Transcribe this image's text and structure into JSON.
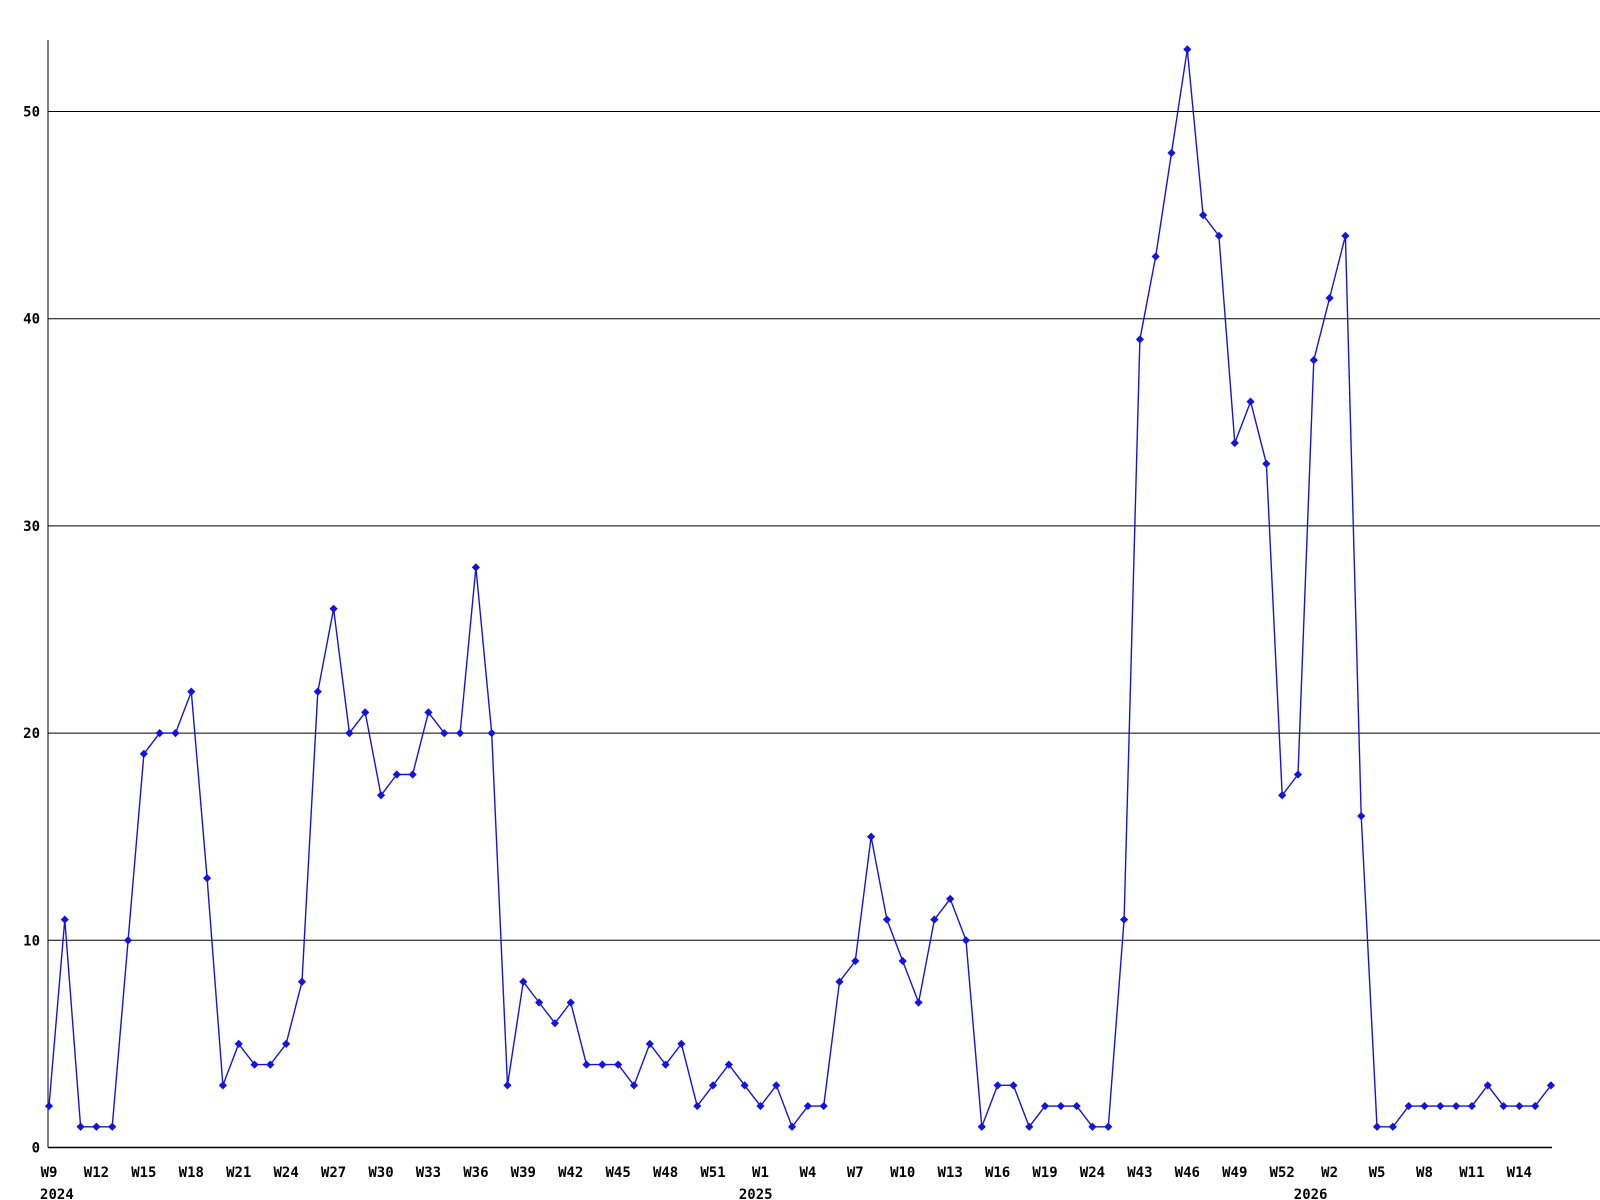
{
  "chart_data": {
    "type": "line",
    "title": "",
    "xlabel": "",
    "ylabel": "",
    "line_color": "#1414dd",
    "marker_color": "#1414dd",
    "grid_color": "#000000",
    "axis_color": "#000000",
    "background_color": "#ffffff",
    "grid": true,
    "legend": "none",
    "marker": "diamond",
    "ylim": [
      0,
      55
    ],
    "y_ticks": [
      0,
      10,
      20,
      30,
      40,
      50
    ],
    "x_tick_every": 3,
    "x_ticks": [
      "W9",
      "W12",
      "W15",
      "W18",
      "W21",
      "W24",
      "W27",
      "W30",
      "W33",
      "W36",
      "W39",
      "W42",
      "W45",
      "W48",
      "W51",
      "W1",
      "W4",
      "W7",
      "W10",
      "W13",
      "W16",
      "W19",
      "W24",
      "W43",
      "W46",
      "W49",
      "W52",
      "W2",
      "W5",
      "W8",
      "W11",
      "W14"
    ],
    "year_markers": [
      {
        "label": "2024",
        "at_point": 0.5
      },
      {
        "label": "2025",
        "at_point": 44.7
      },
      {
        "label": "2026",
        "at_point": 79.8
      }
    ],
    "values": [
      2,
      11,
      1,
      1,
      1,
      10,
      19,
      20,
      20,
      22,
      13,
      3,
      5,
      4,
      4,
      5,
      8,
      22,
      26,
      20,
      21,
      17,
      18,
      18,
      21,
      20,
      20,
      28,
      20,
      3,
      8,
      7,
      6,
      7,
      4,
      4,
      4,
      3,
      5,
      4,
      5,
      2,
      3,
      4,
      3,
      2,
      3,
      1,
      2,
      2,
      8,
      9,
      15,
      11,
      9,
      7,
      11,
      12,
      10,
      1,
      3,
      3,
      1,
      2,
      2,
      2,
      1,
      1,
      11,
      39,
      43,
      48,
      53,
      45,
      44,
      34,
      36,
      33,
      17,
      18,
      38,
      41,
      44,
      16,
      1,
      1,
      2,
      2,
      2,
      2,
      2,
      3,
      2,
      2,
      2,
      3
    ]
  }
}
